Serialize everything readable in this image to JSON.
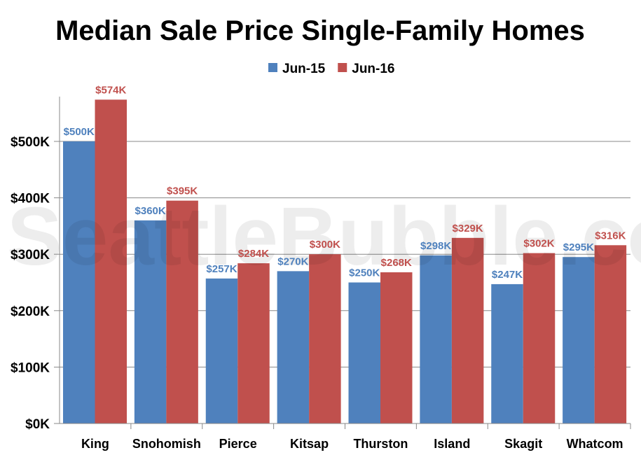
{
  "chart_data": {
    "type": "bar",
    "title": "Median Sale Price Single-Family Homes",
    "categories": [
      "King",
      "Snohomish",
      "Pierce",
      "Kitsap",
      "Thurston",
      "Island",
      "Skagit",
      "Whatcom"
    ],
    "series": [
      {
        "name": "Jun-15",
        "color": "#4f81bd",
        "values": [
          500,
          360,
          257,
          270,
          250,
          298,
          247,
          295
        ],
        "labels": [
          "$500K",
          "$360K",
          "$257K",
          "$270K",
          "$250K",
          "$298K",
          "$247K",
          "$295K"
        ]
      },
      {
        "name": "Jun-16",
        "color": "#c0504d",
        "values": [
          574,
          395,
          284,
          300,
          268,
          329,
          302,
          316
        ],
        "labels": [
          "$574K",
          "$395K",
          "$284K",
          "$300K",
          "$268K",
          "$329K",
          "$302K",
          "$316K"
        ]
      }
    ],
    "ylim": [
      0,
      580
    ],
    "yticks": [
      0,
      100,
      200,
      300,
      400,
      500
    ],
    "ytick_labels": [
      "$0K",
      "$100K",
      "$200K",
      "$300K",
      "$400K",
      "$500K"
    ],
    "xlabel": "",
    "ylabel": "",
    "grid": true,
    "legend_position": "top"
  },
  "watermark": "SeattleBubble.com"
}
